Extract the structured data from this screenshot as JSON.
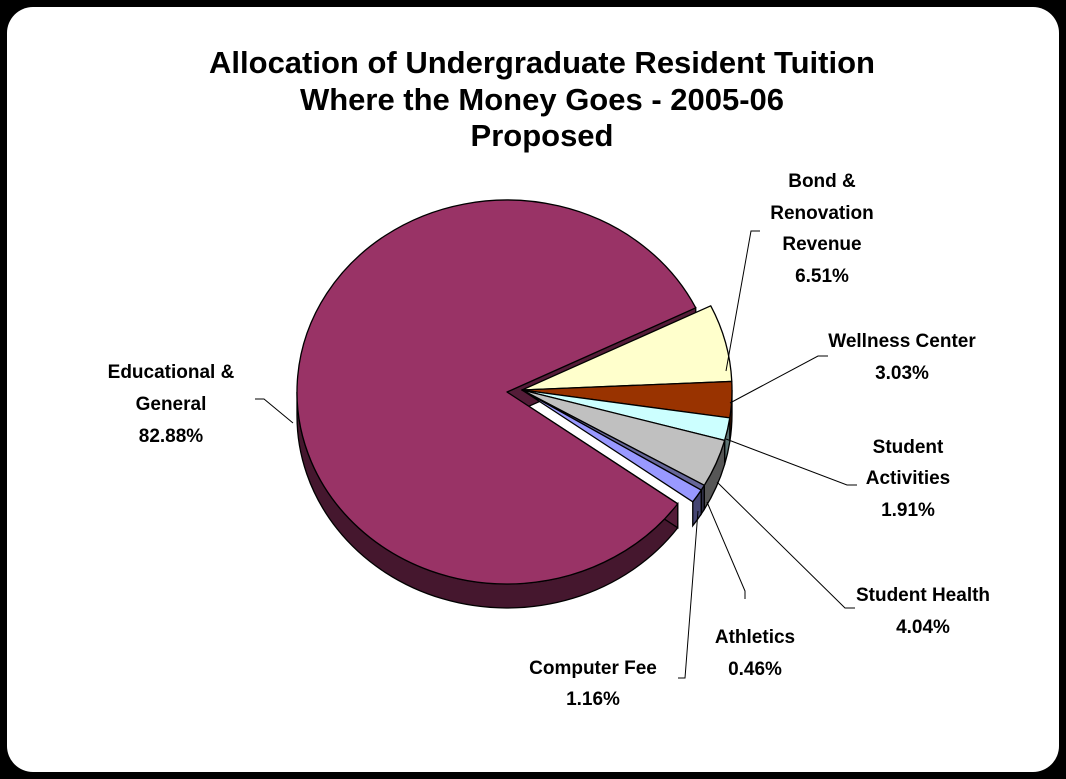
{
  "chart_data": {
    "type": "pie",
    "title_lines": [
      "Allocation of Undergraduate Resident Tuition",
      "Where the Money Goes - 2005-06",
      "Proposed"
    ],
    "slices": [
      {
        "name_lines": [
          "Bond &",
          "Renovation",
          "Revenue"
        ],
        "value": 6.51,
        "percent_label": "6.51%",
        "color": "#FFFFCC"
      },
      {
        "name_lines": [
          "Wellness Center"
        ],
        "value": 3.03,
        "percent_label": "3.03%",
        "color": "#993300"
      },
      {
        "name_lines": [
          "Student",
          "Activities"
        ],
        "value": 1.91,
        "percent_label": "1.91%",
        "color": "#CCFFFF"
      },
      {
        "name_lines": [
          "Student Health"
        ],
        "value": 4.04,
        "percent_label": "4.04%",
        "color": "#C0C0C0"
      },
      {
        "name_lines": [
          "Athletics"
        ],
        "value": 0.46,
        "percent_label": "0.46%",
        "color": "#666699"
      },
      {
        "name_lines": [
          "Computer Fee"
        ],
        "value": 1.16,
        "percent_label": "1.16%",
        "color": "#9999FF"
      },
      {
        "name_lines": [
          "Educational &",
          "General"
        ],
        "value": 82.88,
        "percent_label": "82.88%",
        "color": "#993366"
      }
    ],
    "exploded_slice": "Educational & General",
    "three_d": true
  }
}
